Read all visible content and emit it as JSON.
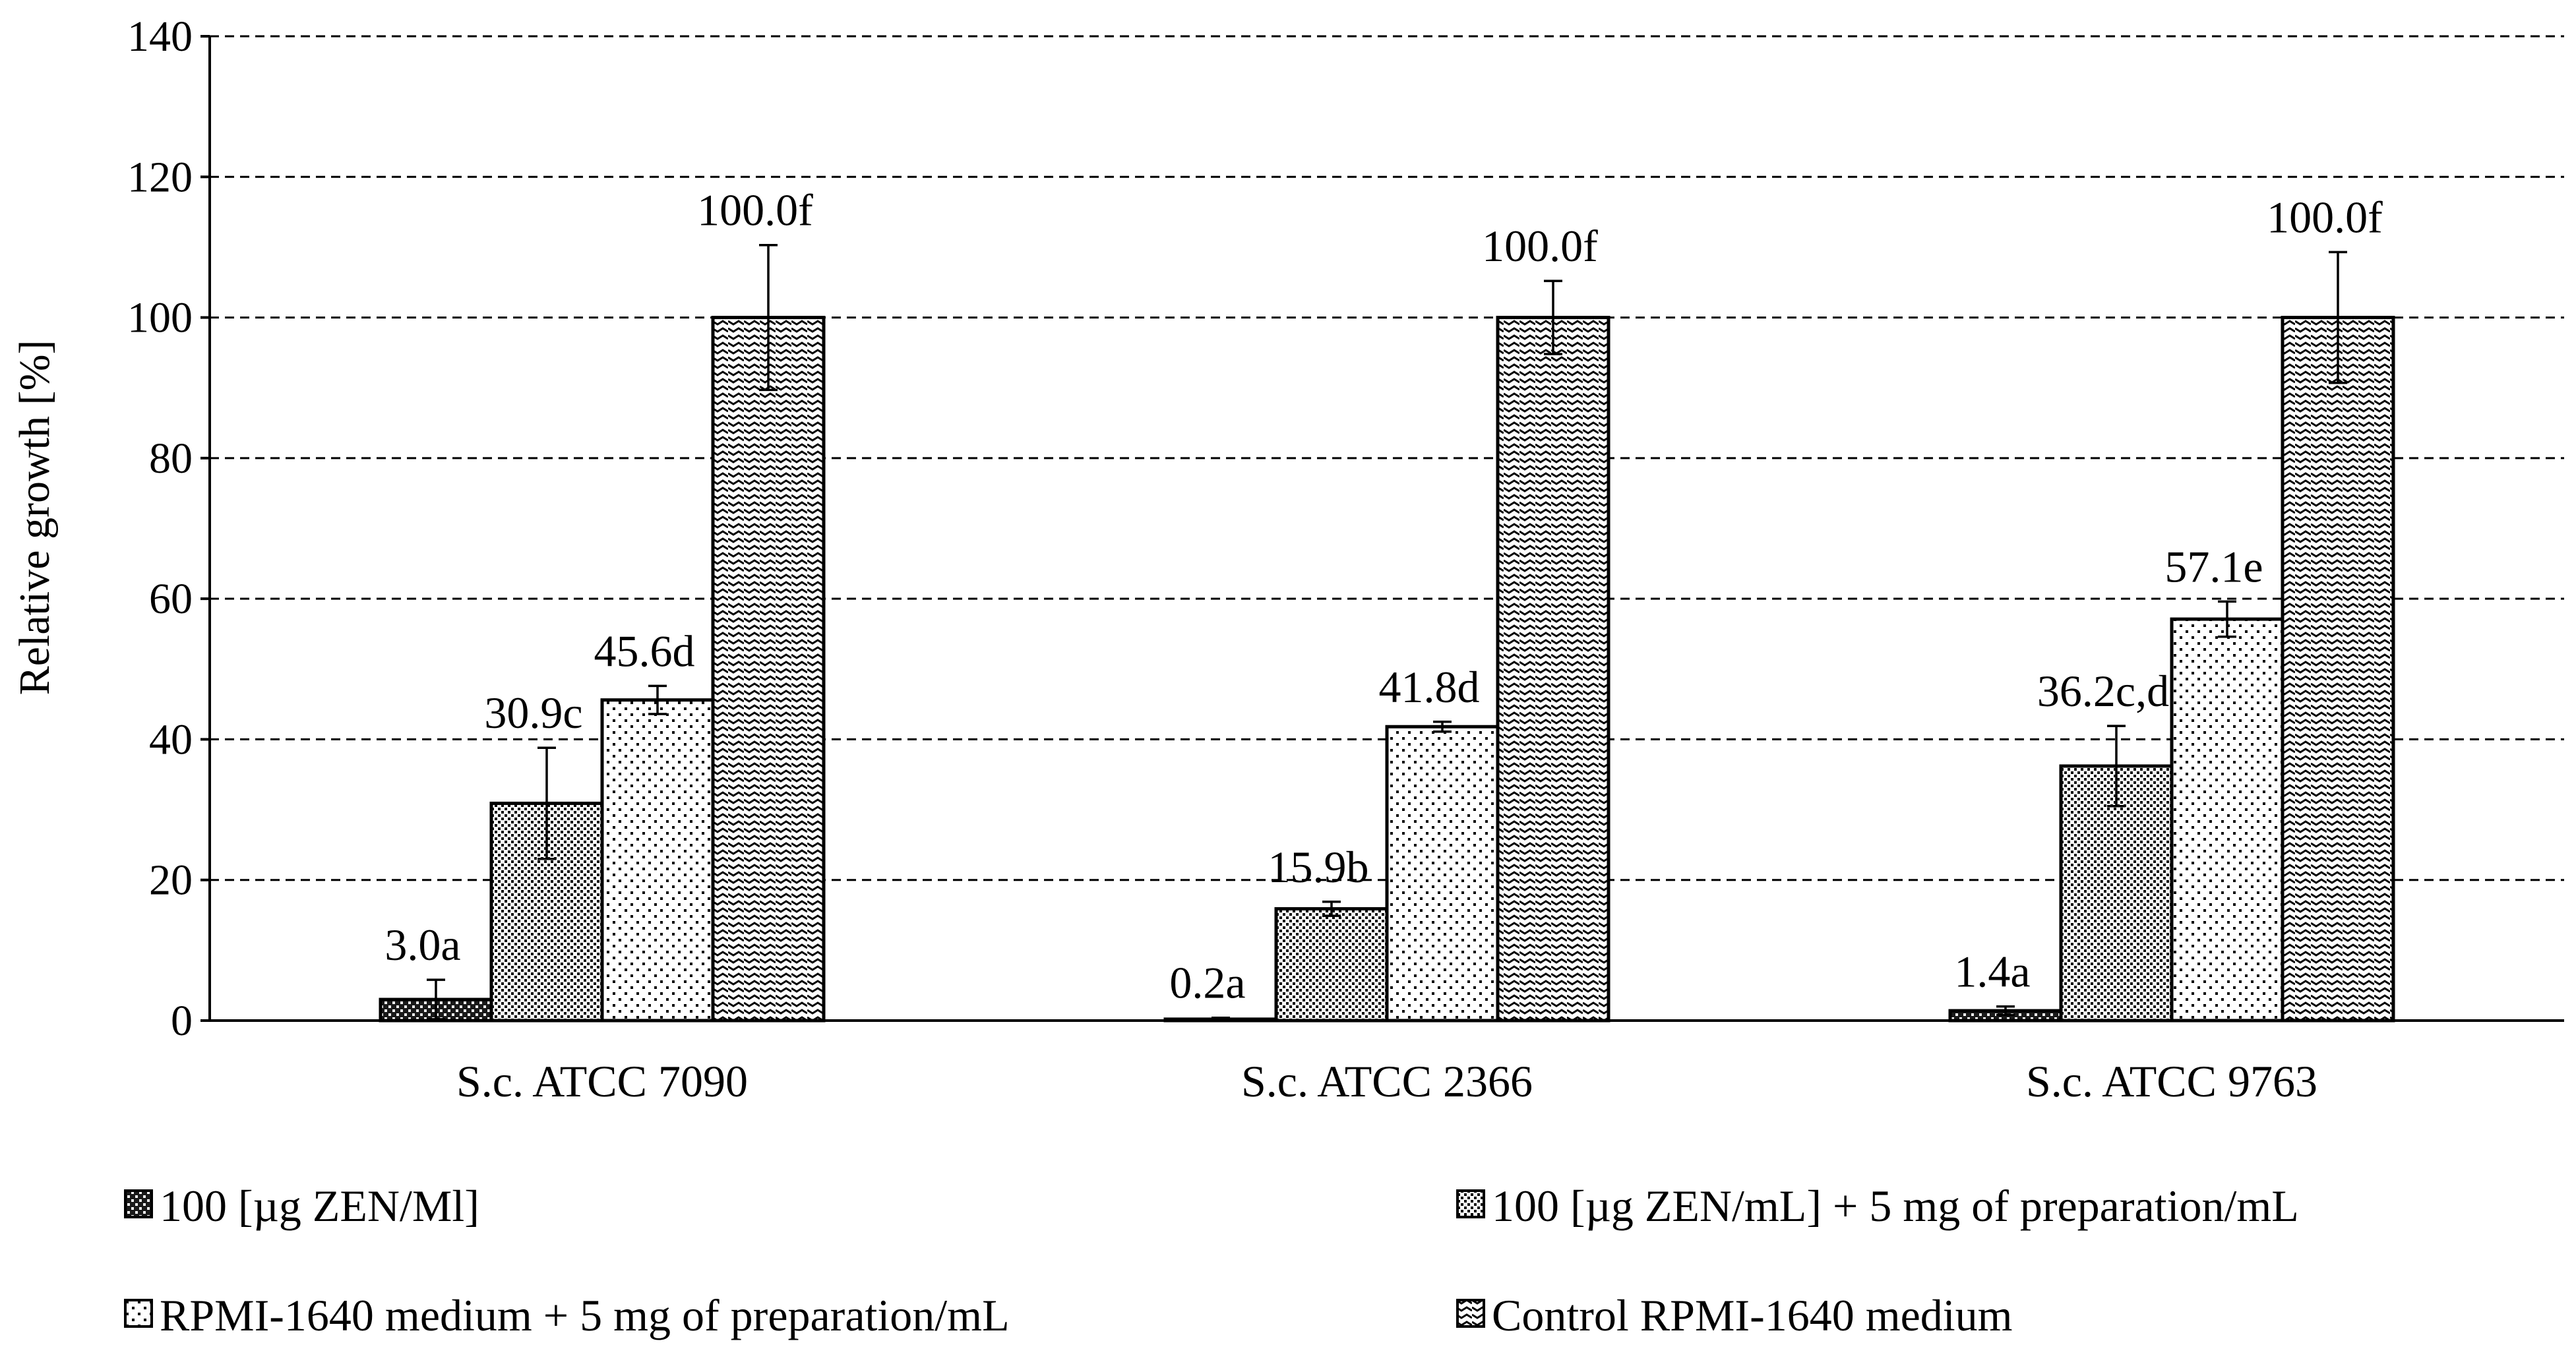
{
  "chart_data": {
    "type": "bar",
    "title": "",
    "xlabel": "",
    "ylabel": "Relative growth [%]",
    "ylim": [
      0,
      140
    ],
    "yticks": [
      0,
      20,
      40,
      60,
      80,
      100,
      120,
      140
    ],
    "grid": true,
    "legend_position": "bottom",
    "categories": [
      "S.c. ATCC 7090",
      "S.c. ATCC 2366",
      "S.c. ATCC 9763"
    ],
    "series": [
      {
        "name": "100 [µg ZEN/Ml]",
        "pattern": "dark",
        "values": [
          3.0,
          0.2,
          1.4
        ],
        "errors": [
          2.8,
          0.2,
          0.6
        ],
        "labels": [
          "3.0a",
          "0.2a",
          "1.4a"
        ]
      },
      {
        "name": "100 [µg ZEN/mL] + 5 mg of preparation/mL",
        "pattern": "dense-dots",
        "values": [
          30.9,
          15.9,
          36.2
        ],
        "errors": [
          7.9,
          1.0,
          5.7
        ],
        "labels": [
          "30.9c",
          "15.9b",
          "36.2c,d"
        ]
      },
      {
        "name": "RPMI-1640 medium + 5 mg of preparation/mL",
        "pattern": "sparse-dots",
        "values": [
          45.6,
          41.8,
          57.1
        ],
        "errors": [
          2.0,
          0.7,
          2.5
        ],
        "labels": [
          "45.6d",
          "41.8d",
          "57.1e"
        ]
      },
      {
        "name": "Control RPMI-1640 medium",
        "pattern": "waves",
        "values": [
          100.0,
          100.0,
          100.0
        ],
        "errors": [
          10.3,
          5.2,
          9.3
        ],
        "labels": [
          "100.0f",
          "100.0f",
          "100.0f"
        ]
      }
    ]
  }
}
